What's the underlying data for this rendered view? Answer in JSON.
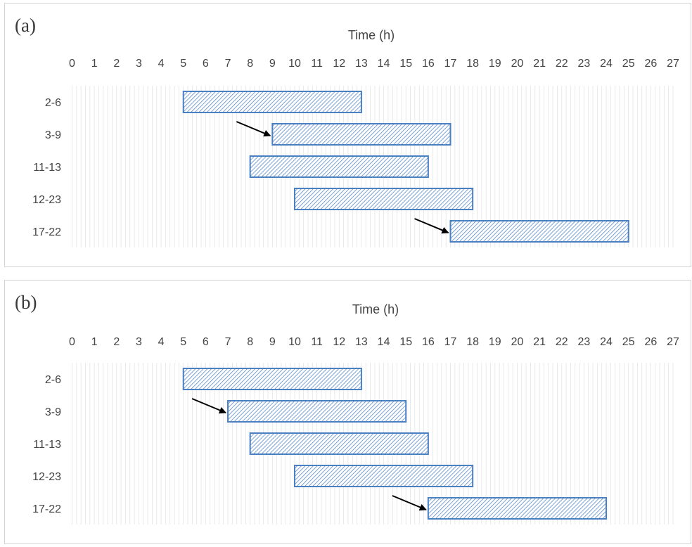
{
  "chart_data": [
    {
      "type": "gantt",
      "panel_label": "(a)",
      "xlabel": "Time (h)",
      "xlim": [
        0,
        27
      ],
      "x_ticks": [
        0,
        1,
        2,
        3,
        4,
        5,
        6,
        7,
        8,
        9,
        10,
        11,
        12,
        13,
        14,
        15,
        16,
        17,
        18,
        19,
        20,
        21,
        22,
        23,
        24,
        25,
        26,
        27
      ],
      "categories": [
        "2-6",
        "3-9",
        "11-13",
        "12-23",
        "17-22"
      ],
      "bars": [
        {
          "category": "2-6",
          "start": 5,
          "end": 13
        },
        {
          "category": "3-9",
          "start": 9,
          "end": 17
        },
        {
          "category": "11-13",
          "start": 8,
          "end": 16
        },
        {
          "category": "12-23",
          "start": 10,
          "end": 18
        },
        {
          "category": "17-22",
          "start": 17,
          "end": 25
        }
      ],
      "arrows": [
        {
          "category": "3-9",
          "points_to": 9
        },
        {
          "category": "17-22",
          "points_to": 17
        }
      ],
      "colors": {
        "bar_edge": "#4a7fc1",
        "hatch": "#5a8ccc",
        "grid": "#e6e6e6",
        "arrow": "#000000"
      }
    },
    {
      "type": "gantt",
      "panel_label": "(b)",
      "xlabel": "Time (h)",
      "xlim": [
        0,
        27
      ],
      "x_ticks": [
        0,
        1,
        2,
        3,
        4,
        5,
        6,
        7,
        8,
        9,
        10,
        11,
        12,
        13,
        14,
        15,
        16,
        17,
        18,
        19,
        20,
        21,
        22,
        23,
        24,
        25,
        26,
        27
      ],
      "categories": [
        "2-6",
        "3-9",
        "11-13",
        "12-23",
        "17-22"
      ],
      "bars": [
        {
          "category": "2-6",
          "start": 5,
          "end": 13
        },
        {
          "category": "3-9",
          "start": 7,
          "end": 15
        },
        {
          "category": "11-13",
          "start": 8,
          "end": 16
        },
        {
          "category": "12-23",
          "start": 10,
          "end": 18
        },
        {
          "category": "17-22",
          "start": 16,
          "end": 24
        }
      ],
      "arrows": [
        {
          "category": "3-9",
          "points_to": 7
        },
        {
          "category": "17-22",
          "points_to": 16
        }
      ],
      "colors": {
        "bar_edge": "#4a7fc1",
        "hatch": "#5a8ccc",
        "grid": "#e6e6e6",
        "arrow": "#000000"
      }
    }
  ]
}
